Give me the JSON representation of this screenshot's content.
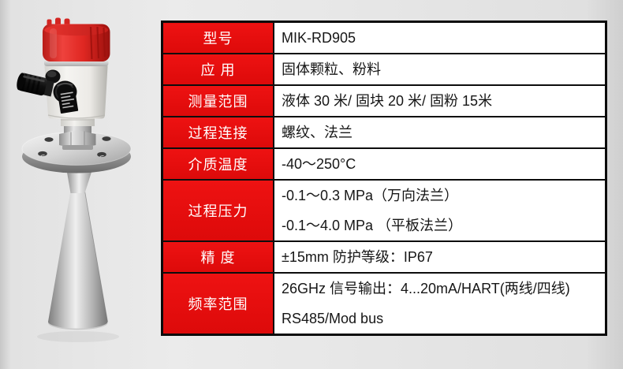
{
  "page": {
    "background_color": "#e6e6e6",
    "description": "Product specification sheet of a radar level transmitter"
  },
  "product_image": {
    "name": "radar-level-transmitter",
    "alt": "Radar level transmitter with red terminal cap, white housing, black cable gland, stainless steel flange and horn antenna",
    "colors": {
      "cap_red": "#df2420",
      "housing_white": "#f2f1ed",
      "metal_silver": "#c6c6c6",
      "gland_black": "#141414"
    }
  },
  "spec_table": {
    "header_bg": "#e30e0e",
    "header_text_color": "#ffffff",
    "value_text_color": "#161616",
    "border_color": "#0d0d0d",
    "cell_bg": "#ffffff",
    "rows": [
      {
        "label": "型号",
        "values": [
          "MIK-RD905"
        ]
      },
      {
        "label": "应 用",
        "values": [
          "固体颗粒、粉料"
        ]
      },
      {
        "label": "测量范围",
        "values": [
          "液体 30 米/ 固块 20 米/ 固粉 15米"
        ]
      },
      {
        "label": "过程连接",
        "values": [
          "螺纹、法兰"
        ]
      },
      {
        "label": "介质温度",
        "values": [
          "-40～250°C"
        ]
      },
      {
        "label": "过程压力",
        "values": [
          "-0.1～0.3 MPa（万向法兰）",
          "-0.1～4.0 MPa （平板法兰）"
        ]
      },
      {
        "label": "精 度",
        "values": [
          "±15mm 防护等级：IP67"
        ]
      },
      {
        "label": "频率范围",
        "values": [
          "26GHz 信号输出：4...20mA/HART(两线/四线)",
          "RS485/Mod bus"
        ]
      }
    ]
  }
}
